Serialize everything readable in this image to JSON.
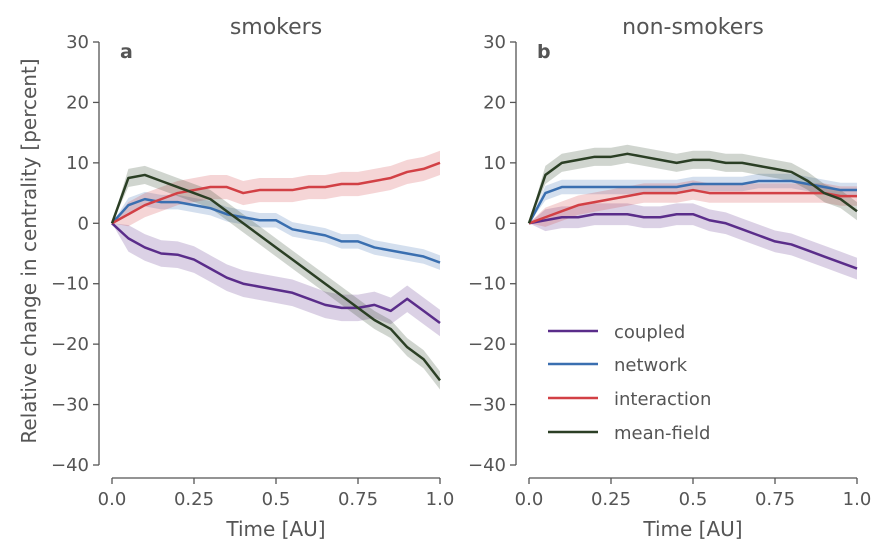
{
  "ylabel": "Relative change in centrality [percent]",
  "colors": {
    "coupled": "#5a2d8a",
    "network": "#3a6fb0",
    "interaction": "#d24045",
    "mean-field": "#2b3f25",
    "axis": "#555555"
  },
  "legend": [
    {
      "key": "coupled",
      "label": "coupled"
    },
    {
      "key": "network",
      "label": "network"
    },
    {
      "key": "interaction",
      "label": "interaction"
    },
    {
      "key": "mean-field",
      "label": "mean-field"
    }
  ],
  "chart_data": [
    {
      "type": "line",
      "panel_label": "a",
      "title": "smokers",
      "xlabel": "Time [AU]",
      "ylabel": "Relative change in centrality [percent]",
      "xlim": [
        0,
        1
      ],
      "ylim": [
        -40,
        30
      ],
      "xticks": [
        "0.0",
        "0.25",
        "0.5",
        "0.75",
        "1.0"
      ],
      "yticks": [
        "−40",
        "−30",
        "−20",
        "−10",
        "0",
        "10",
        "20",
        "30"
      ],
      "x": [
        0,
        0.05,
        0.1,
        0.15,
        0.2,
        0.25,
        0.3,
        0.35,
        0.4,
        0.45,
        0.5,
        0.55,
        0.6,
        0.65,
        0.7,
        0.75,
        0.8,
        0.85,
        0.9,
        0.95,
        1.0
      ],
      "series": [
        {
          "name": "coupled",
          "band": 2.2,
          "values": [
            0,
            -2.5,
            -4,
            -5,
            -5.2,
            -6,
            -7.5,
            -9,
            -10,
            -10.5,
            -11,
            -11.5,
            -12.5,
            -13.5,
            -14,
            -14,
            -13.5,
            -14.5,
            -12.5,
            -14.5,
            -16.5
          ]
        },
        {
          "name": "network",
          "band": 1.2,
          "values": [
            0,
            3,
            4,
            3.5,
            3.5,
            3,
            2.5,
            1.5,
            1,
            0.5,
            0.5,
            -1,
            -1.5,
            -2,
            -3,
            -3,
            -4,
            -4.5,
            -5,
            -5.5,
            -6.5
          ]
        },
        {
          "name": "interaction",
          "band": 2.0,
          "values": [
            0,
            1.5,
            3,
            4,
            5,
            5.5,
            6,
            6,
            5,
            5.5,
            5.5,
            5.5,
            6,
            6,
            6.5,
            6.5,
            7,
            7.5,
            8.5,
            9,
            10
          ]
        },
        {
          "name": "mean-field",
          "band": 1.5,
          "values": [
            0,
            7.5,
            8,
            7,
            6,
            5,
            4,
            2,
            0,
            -2,
            -4,
            -6,
            -8,
            -10,
            -12,
            -14,
            -16,
            -17.5,
            -20.5,
            -22.5,
            -26
          ]
        }
      ]
    },
    {
      "type": "line",
      "panel_label": "b",
      "title": "non-smokers",
      "xlabel": "Time [AU]",
      "ylabel": "",
      "xlim": [
        0,
        1
      ],
      "ylim": [
        -40,
        30
      ],
      "xticks": [
        "0.0",
        "0.25",
        "0.5",
        "0.75",
        "1.0"
      ],
      "yticks": [
        "−40",
        "−30",
        "−20",
        "−10",
        "0",
        "10",
        "20",
        "30"
      ],
      "x": [
        0,
        0.05,
        0.1,
        0.15,
        0.2,
        0.25,
        0.3,
        0.35,
        0.4,
        0.45,
        0.5,
        0.55,
        0.6,
        0.65,
        0.7,
        0.75,
        0.8,
        0.85,
        0.9,
        0.95,
        1.0
      ],
      "series": [
        {
          "name": "coupled",
          "band": 1.8,
          "values": [
            0,
            0.5,
            1,
            1,
            1.5,
            1.5,
            1.5,
            1,
            1,
            1.5,
            1.5,
            0.5,
            0,
            -1,
            -2,
            -3,
            -3.5,
            -4.5,
            -5.5,
            -6.5,
            -7.5
          ]
        },
        {
          "name": "network",
          "band": 1.2,
          "values": [
            0,
            5,
            6,
            6,
            6,
            6,
            6,
            6,
            6,
            6,
            6.5,
            6.5,
            6.5,
            6.5,
            7,
            7,
            7,
            6.5,
            6,
            5.5,
            5.5
          ]
        },
        {
          "name": "interaction",
          "band": 1.6,
          "values": [
            0,
            1,
            2,
            3,
            3.5,
            4,
            4.5,
            5,
            5,
            5,
            5.5,
            5,
            5,
            5,
            5,
            5,
            5,
            5,
            5,
            4.5,
            4.5
          ]
        },
        {
          "name": "mean-field",
          "band": 1.5,
          "values": [
            0,
            8,
            10,
            10.5,
            11,
            11,
            11.5,
            11,
            10.5,
            10,
            10.5,
            10.5,
            10,
            10,
            9.5,
            9,
            8.5,
            7,
            5,
            4,
            2
          ]
        }
      ]
    }
  ]
}
